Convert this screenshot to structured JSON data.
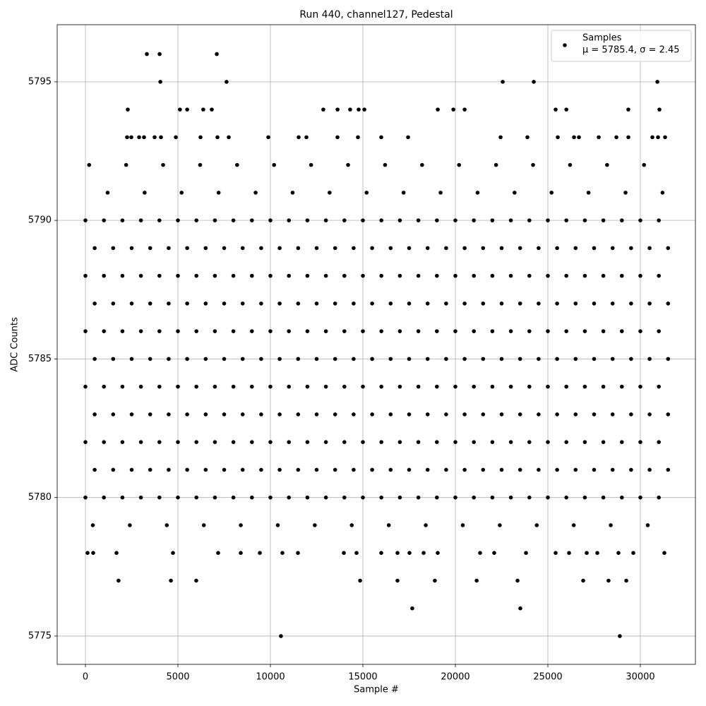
{
  "chart_data": {
    "type": "scatter",
    "title": "Run 440, channel127, Pedestal",
    "x_label": "Sample #",
    "y_label": "ADC Counts",
    "series_name": "Samples",
    "annotation": "μ = 5785.4, σ = 2.45",
    "color": "#000000",
    "grid": true,
    "legend": "upper right",
    "xlim": [
      -1527,
      32977
    ],
    "ylim": [
      5773.98,
      5797.06
    ],
    "xticks": [
      0,
      5000,
      10000,
      15000,
      20000,
      25000,
      30000
    ],
    "yticks": [
      5775,
      5780,
      5785,
      5790,
      5795
    ],
    "x": [
      0,
      1000,
      2000,
      3000,
      4000,
      5000,
      6000,
      7000,
      8000,
      9000,
      10000,
      11000,
      12000,
      13000,
      14000,
      15000,
      16000,
      17000,
      18000,
      19000,
      20000,
      21000,
      22000,
      23000,
      24000,
      25000,
      26000,
      27000,
      28000,
      29000,
      30000,
      31000,
      500,
      1500,
      2500,
      3500,
      4500,
      5500,
      6500,
      7500,
      8500,
      9500,
      10500,
      11500,
      12500,
      13500,
      14500,
      15500,
      16500,
      17500,
      18500,
      19500,
      20500,
      21500,
      22500,
      23500,
      24500,
      25500,
      26500,
      27500,
      28500,
      29500,
      30500,
      31500,
      0,
      1000,
      2000,
      3000,
      4000,
      5000,
      6000,
      7000,
      8000,
      9000,
      10000,
      11000,
      12000,
      13000,
      14000,
      15000,
      16000,
      17000,
      18000,
      19000,
      20000,
      21000,
      22000,
      23000,
      24000,
      25000,
      26000,
      27000,
      28000,
      29000,
      30000,
      31000,
      500,
      1500,
      2500,
      3500,
      4500,
      5500,
      6500,
      7500,
      8500,
      9500,
      10500,
      11500,
      12500,
      13500,
      14500,
      15500,
      16500,
      17500,
      18500,
      19500,
      20500,
      21500,
      22500,
      23500,
      24500,
      25500,
      26500,
      27500,
      28500,
      29500,
      30500,
      31500,
      0,
      1000,
      2000,
      3000,
      4000,
      5000,
      6000,
      7000,
      8000,
      9000,
      10000,
      11000,
      12000,
      13000,
      14000,
      15000,
      16000,
      17000,
      18000,
      19000,
      20000,
      21000,
      22000,
      23000,
      24000,
      25000,
      26000,
      27000,
      28000,
      29000,
      30000,
      31000,
      500,
      1500,
      2500,
      3500,
      4500,
      5500,
      6500,
      7500,
      8500,
      9500,
      10500,
      11500,
      12500,
      13500,
      14500,
      15500,
      16500,
      17500,
      18500,
      19500,
      20500,
      21500,
      22500,
      23500,
      24500,
      25500,
      26500,
      27500,
      28500,
      29500,
      30500,
      31500,
      0,
      1000,
      2000,
      3000,
      4000,
      5000,
      6000,
      7000,
      8000,
      9000,
      10000,
      11000,
      12000,
      13000,
      14000,
      15000,
      16000,
      17000,
      18000,
      19000,
      20000,
      21000,
      22000,
      23000,
      24000,
      25000,
      26000,
      27000,
      28000,
      29000,
      30000,
      31000,
      500,
      1500,
      2500,
      3500,
      4500,
      5500,
      6500,
      7500,
      8500,
      9500,
      10500,
      11500,
      12500,
      13500,
      14500,
      15500,
      16500,
      17500,
      18500,
      19500,
      20500,
      21500,
      22500,
      23500,
      24500,
      25500,
      26500,
      27500,
      28500,
      29500,
      30500,
      31500,
      0,
      1000,
      2000,
      3000,
      4000,
      5000,
      6000,
      7000,
      8000,
      9000,
      10000,
      11000,
      12000,
      13000,
      14000,
      15000,
      16000,
      17000,
      18000,
      19000,
      20000,
      21000,
      22000,
      23000,
      24000,
      25000,
      26000,
      27000,
      28000,
      29000,
      30000,
      31000,
      500,
      1500,
      2500,
      3500,
      4500,
      5500,
      6500,
      7500,
      8500,
      9500,
      10500,
      11500,
      12500,
      13500,
      14500,
      15500,
      16500,
      17500,
      18500,
      19500,
      20500,
      21500,
      22500,
      23500,
      24500,
      25500,
      26500,
      27500,
      28500,
      29500,
      30500,
      31500,
      0,
      1000,
      2000,
      3000,
      4000,
      5000,
      6000,
      7000,
      8000,
      9000,
      10000,
      11000,
      12000,
      13000,
      14000,
      15000,
      16000,
      17000,
      18000,
      19000,
      20000,
      21000,
      22000,
      23000,
      24000,
      25000,
      26000,
      27000,
      28000,
      29000,
      30000,
      31000,
      400,
      2400,
      4400,
      6400,
      8400,
      10400,
      12400,
      14400,
      16400,
      18400,
      20400,
      22400,
      24400,
      26400,
      28400,
      30400,
      1200,
      3200,
      5200,
      7200,
      9200,
      11200,
      13200,
      15200,
      17200,
      19200,
      21200,
      23200,
      25200,
      27200,
      29200,
      31200,
      200,
      2200,
      4200,
      6200,
      8200,
      10200,
      12200,
      14200,
      16200,
      18200,
      20200,
      22200,
      24200,
      26200,
      28200,
      30200,
      2252,
      2481,
      2901,
      3168,
      3740,
      4084,
      4886,
      6222,
      7138,
      7749,
      9886,
      11527,
      11947,
      13627,
      14733,
      15993,
      17444,
      22444,
      23894,
      25536,
      26414,
      26681,
      27750,
      28704,
      29353,
      30651,
      30956,
      31338,
      115,
      420,
      1679,
      4733,
      7176,
      8397,
      9428,
      10649,
      11489,
      13970,
      14657,
      15993,
      16871,
      17520,
      18283,
      19046,
      21336,
      22100,
      23818,
      25421,
      26146,
      27100,
      27673,
      28818,
      29620,
      31299,
      2290,
      5110,
      5500,
      6370,
      6830,
      12860,
      13630,
      14310,
      14770,
      15080,
      19050,
      19890,
      20500,
      25420,
      26000,
      29350,
      31030,
      4050,
      7630,
      22560,
      24240,
      30920,
      3320,
      4010,
      7100,
      1790,
      4620,
      5990,
      14850,
      16870,
      18890,
      21150,
      23360,
      26910,
      28280,
      29240,
      17670,
      23510,
      10570,
      28890
    ],
    "y": [
      5790,
      5790,
      5790,
      5790,
      5790,
      5790,
      5790,
      5790,
      5790,
      5790,
      5790,
      5790,
      5790,
      5790,
      5790,
      5790,
      5790,
      5790,
      5790,
      5790,
      5790,
      5790,
      5790,
      5790,
      5790,
      5790,
      5790,
      5790,
      5790,
      5790,
      5790,
      5790,
      5789,
      5789,
      5789,
      5789,
      5789,
      5789,
      5789,
      5789,
      5789,
      5789,
      5789,
      5789,
      5789,
      5789,
      5789,
      5789,
      5789,
      5789,
      5789,
      5789,
      5789,
      5789,
      5789,
      5789,
      5789,
      5789,
      5789,
      5789,
      5789,
      5789,
      5789,
      5789,
      5788,
      5788,
      5788,
      5788,
      5788,
      5788,
      5788,
      5788,
      5788,
      5788,
      5788,
      5788,
      5788,
      5788,
      5788,
      5788,
      5788,
      5788,
      5788,
      5788,
      5788,
      5788,
      5788,
      5788,
      5788,
      5788,
      5788,
      5788,
      5788,
      5788,
      5788,
      5788,
      5787,
      5787,
      5787,
      5787,
      5787,
      5787,
      5787,
      5787,
      5787,
      5787,
      5787,
      5787,
      5787,
      5787,
      5787,
      5787,
      5787,
      5787,
      5787,
      5787,
      5787,
      5787,
      5787,
      5787,
      5787,
      5787,
      5787,
      5787,
      5787,
      5787,
      5787,
      5787,
      5786,
      5786,
      5786,
      5786,
      5786,
      5786,
      5786,
      5786,
      5786,
      5786,
      5786,
      5786,
      5786,
      5786,
      5786,
      5786,
      5786,
      5786,
      5786,
      5786,
      5786,
      5786,
      5786,
      5786,
      5786,
      5786,
      5786,
      5786,
      5786,
      5786,
      5786,
      5786,
      5785,
      5785,
      5785,
      5785,
      5785,
      5785,
      5785,
      5785,
      5785,
      5785,
      5785,
      5785,
      5785,
      5785,
      5785,
      5785,
      5785,
      5785,
      5785,
      5785,
      5785,
      5785,
      5785,
      5785,
      5785,
      5785,
      5785,
      5785,
      5785,
      5785,
      5785,
      5785,
      5784,
      5784,
      5784,
      5784,
      5784,
      5784,
      5784,
      5784,
      5784,
      5784,
      5784,
      5784,
      5784,
      5784,
      5784,
      5784,
      5784,
      5784,
      5784,
      5784,
      5784,
      5784,
      5784,
      5784,
      5784,
      5784,
      5784,
      5784,
      5784,
      5784,
      5784,
      5784,
      5783,
      5783,
      5783,
      5783,
      5783,
      5783,
      5783,
      5783,
      5783,
      5783,
      5783,
      5783,
      5783,
      5783,
      5783,
      5783,
      5783,
      5783,
      5783,
      5783,
      5783,
      5783,
      5783,
      5783,
      5783,
      5783,
      5783,
      5783,
      5783,
      5783,
      5783,
      5783,
      5782,
      5782,
      5782,
      5782,
      5782,
      5782,
      5782,
      5782,
      5782,
      5782,
      5782,
      5782,
      5782,
      5782,
      5782,
      5782,
      5782,
      5782,
      5782,
      5782,
      5782,
      5782,
      5782,
      5782,
      5782,
      5782,
      5782,
      5782,
      5782,
      5782,
      5782,
      5782,
      5781,
      5781,
      5781,
      5781,
      5781,
      5781,
      5781,
      5781,
      5781,
      5781,
      5781,
      5781,
      5781,
      5781,
      5781,
      5781,
      5781,
      5781,
      5781,
      5781,
      5781,
      5781,
      5781,
      5781,
      5781,
      5781,
      5781,
      5781,
      5781,
      5781,
      5781,
      5781,
      5780,
      5780,
      5780,
      5780,
      5780,
      5780,
      5780,
      5780,
      5780,
      5780,
      5780,
      5780,
      5780,
      5780,
      5780,
      5780,
      5780,
      5780,
      5780,
      5780,
      5780,
      5780,
      5780,
      5780,
      5780,
      5780,
      5780,
      5780,
      5780,
      5780,
      5780,
      5780,
      5779,
      5779,
      5779,
      5779,
      5779,
      5779,
      5779,
      5779,
      5779,
      5779,
      5779,
      5779,
      5779,
      5779,
      5779,
      5779,
      5791,
      5791,
      5791,
      5791,
      5791,
      5791,
      5791,
      5791,
      5791,
      5791,
      5791,
      5791,
      5791,
      5791,
      5791,
      5791,
      5792,
      5792,
      5792,
      5792,
      5792,
      5792,
      5792,
      5792,
      5792,
      5792,
      5792,
      5792,
      5792,
      5792,
      5792,
      5792,
      5793,
      5793,
      5793,
      5793,
      5793,
      5793,
      5793,
      5793,
      5793,
      5793,
      5793,
      5793,
      5793,
      5793,
      5793,
      5793,
      5793,
      5793,
      5793,
      5793,
      5793,
      5793,
      5793,
      5793,
      5793,
      5793,
      5793,
      5793,
      5778,
      5778,
      5778,
      5778,
      5778,
      5778,
      5778,
      5778,
      5778,
      5778,
      5778,
      5778,
      5778,
      5778,
      5778,
      5778,
      5778,
      5778,
      5778,
      5778,
      5778,
      5778,
      5778,
      5778,
      5778,
      5778,
      5794,
      5794,
      5794,
      5794,
      5794,
      5794,
      5794,
      5794,
      5794,
      5794,
      5794,
      5794,
      5794,
      5794,
      5794,
      5794,
      5794,
      5795,
      5795,
      5795,
      5795,
      5795,
      5796,
      5796,
      5796,
      5777,
      5777,
      5777,
      5777,
      5777,
      5777,
      5777,
      5777,
      5777,
      5777,
      5777,
      5776,
      5776,
      5775,
      5775
    ]
  }
}
